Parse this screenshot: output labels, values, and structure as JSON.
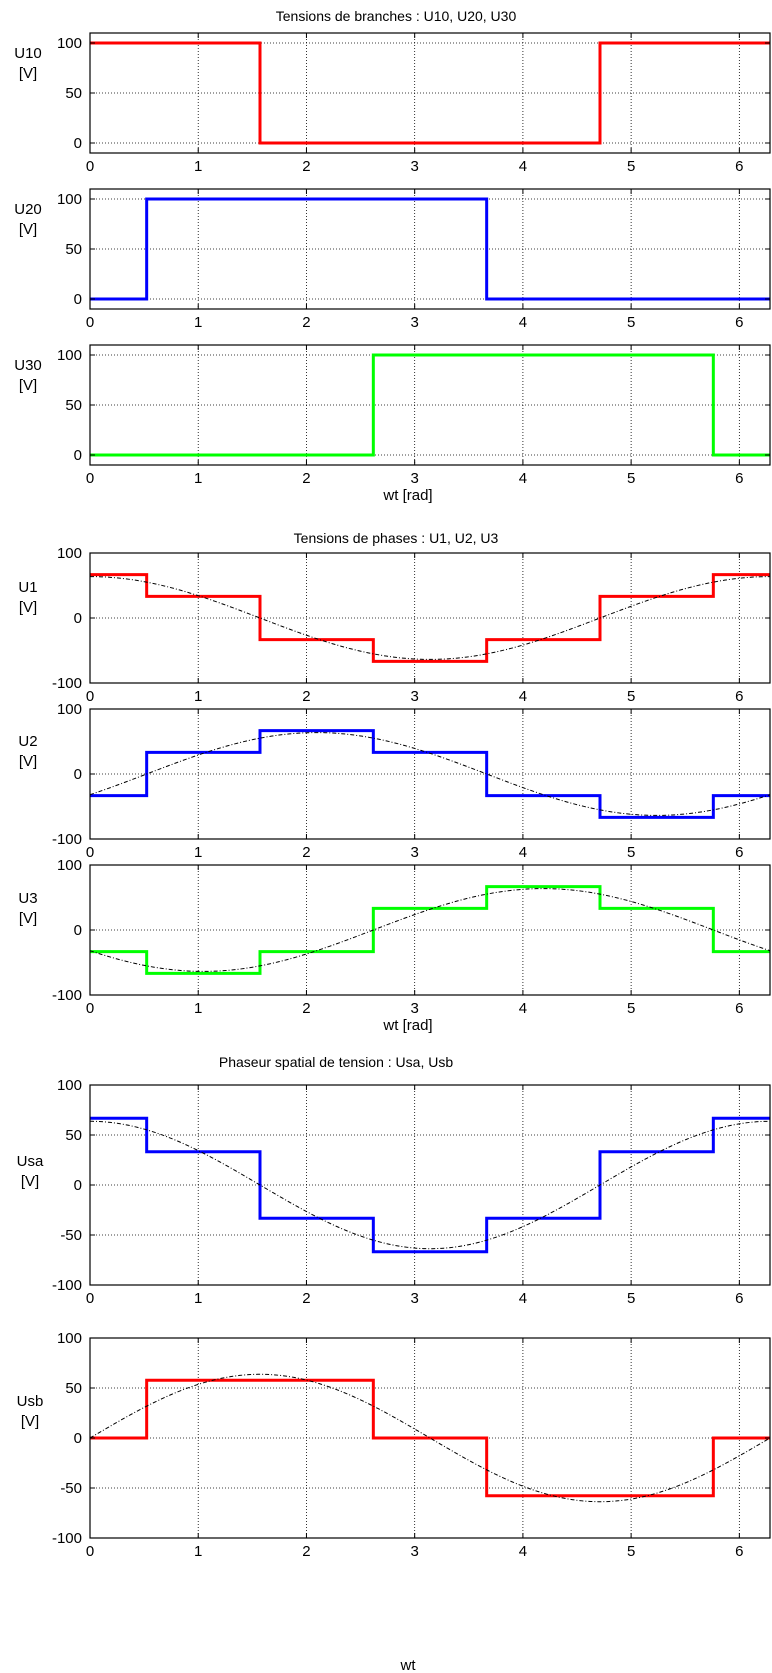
{
  "figures": [
    {
      "title": "Tensions de branches : U10, U20, U30",
      "xlabel": "wt [rad]",
      "panels": [
        {
          "id": "U10",
          "ylabel": [
            "U10",
            "[V]"
          ],
          "color": "#ff0000",
          "yticks": [
            "0",
            "50",
            "100"
          ]
        },
        {
          "id": "U20",
          "ylabel": [
            "U20",
            "[V]"
          ],
          "color": "#0000ff",
          "yticks": [
            "0",
            "50",
            "100"
          ]
        },
        {
          "id": "U30",
          "ylabel": [
            "U30",
            "[V]"
          ],
          "color": "#00ff00",
          "yticks": [
            "0",
            "50",
            "100"
          ]
        }
      ]
    },
    {
      "title": "Tensions de phases : U1, U2, U3",
      "xlabel": "wt [rad]",
      "panels": [
        {
          "id": "U1",
          "ylabel": [
            "U1",
            "[V]"
          ],
          "color": "#ff0000",
          "yticks": [
            "-100",
            "0",
            "100"
          ]
        },
        {
          "id": "U2",
          "ylabel": [
            "U2",
            "[V]"
          ],
          "color": "#0000ff",
          "yticks": [
            "-100",
            "0",
            "100"
          ]
        },
        {
          "id": "U3",
          "ylabel": [
            "U3",
            "[V]"
          ],
          "color": "#00ff00",
          "yticks": [
            "-100",
            "0",
            "100"
          ]
        }
      ]
    },
    {
      "title": "Phaseur spatial de tension : Usa, Usb",
      "xlabel": "",
      "panels": [
        {
          "id": "Usa",
          "ylabel": [
            "Usa",
            "[V]"
          ],
          "color": "#0000ff",
          "yticks": [
            "-100",
            "-50",
            "0",
            "50",
            "100"
          ]
        }
      ]
    },
    {
      "title": "",
      "xlabel": "wt",
      "panels": [
        {
          "id": "Usb",
          "ylabel": [
            "Usb",
            "[V]"
          ],
          "color": "#ff0000",
          "yticks": [
            "-100",
            "-50",
            "0",
            "50",
            "100"
          ]
        }
      ]
    }
  ],
  "chart_data": [
    {
      "id": "U10",
      "type": "line",
      "xlim": [
        0,
        6.2832
      ],
      "ylim": [
        -10,
        110
      ],
      "xticks": [
        0,
        1,
        2,
        3,
        4,
        5,
        6
      ],
      "yticks": [
        0,
        50,
        100
      ],
      "grid": true,
      "series": [
        {
          "x": [
            0,
            1.5708,
            1.5708,
            4.7124,
            4.7124,
            6.2832
          ],
          "y": [
            100,
            100,
            0,
            0,
            100,
            100
          ]
        }
      ]
    },
    {
      "id": "U20",
      "type": "line",
      "xlim": [
        0,
        6.2832
      ],
      "ylim": [
        -10,
        110
      ],
      "xticks": [
        0,
        1,
        2,
        3,
        4,
        5,
        6
      ],
      "yticks": [
        0,
        50,
        100
      ],
      "grid": true,
      "series": [
        {
          "x": [
            0,
            0.5236,
            0.5236,
            3.6652,
            3.6652,
            6.2832
          ],
          "y": [
            0,
            0,
            100,
            100,
            0,
            0
          ]
        }
      ]
    },
    {
      "id": "U30",
      "type": "line",
      "xlim": [
        0,
        6.2832
      ],
      "ylim": [
        -10,
        110
      ],
      "xticks": [
        0,
        1,
        2,
        3,
        4,
        5,
        6
      ],
      "yticks": [
        0,
        50,
        100
      ],
      "grid": true,
      "series": [
        {
          "x": [
            0,
            2.618,
            2.618,
            5.7596,
            5.7596,
            6.2832
          ],
          "y": [
            0,
            0,
            100,
            100,
            0,
            0
          ]
        }
      ]
    },
    {
      "id": "U1",
      "type": "line",
      "xlim": [
        0,
        6.2832
      ],
      "ylim": [
        -100,
        100
      ],
      "xticks": [
        0,
        1,
        2,
        3,
        4,
        5,
        6
      ],
      "yticks": [
        -100,
        0,
        100
      ],
      "grid": true,
      "series": [
        {
          "x": [
            0,
            0.5236,
            0.5236,
            1.5708,
            1.5708,
            2.618,
            2.618,
            3.6652,
            3.6652,
            4.7124,
            4.7124,
            5.7596,
            5.7596,
            6.2832
          ],
          "y": [
            66.7,
            66.7,
            33.3,
            33.3,
            -33.3,
            -33.3,
            -66.7,
            -66.7,
            -33.3,
            -33.3,
            33.3,
            33.3,
            66.7,
            66.7
          ]
        },
        {
          "style": "dashdot",
          "function": "sine",
          "amplitude": 63.7,
          "phase": 1.5708
        }
      ]
    },
    {
      "id": "U2",
      "type": "line",
      "xlim": [
        0,
        6.2832
      ],
      "ylim": [
        -100,
        100
      ],
      "xticks": [
        0,
        1,
        2,
        3,
        4,
        5,
        6
      ],
      "yticks": [
        -100,
        0,
        100
      ],
      "grid": true,
      "series": [
        {
          "x": [
            0,
            0.5236,
            0.5236,
            1.5708,
            1.5708,
            2.618,
            2.618,
            3.6652,
            3.6652,
            4.7124,
            4.7124,
            5.7596,
            5.7596,
            6.2832
          ],
          "y": [
            -33.3,
            -33.3,
            33.3,
            33.3,
            66.7,
            66.7,
            33.3,
            33.3,
            -33.3,
            -33.3,
            -66.7,
            -66.7,
            -33.3,
            -33.3
          ]
        },
        {
          "style": "dashdot",
          "function": "sine",
          "amplitude": 63.7,
          "phase": -0.5236
        }
      ]
    },
    {
      "id": "U3",
      "type": "line",
      "xlim": [
        0,
        6.2832
      ],
      "ylim": [
        -100,
        100
      ],
      "xticks": [
        0,
        1,
        2,
        3,
        4,
        5,
        6
      ],
      "yticks": [
        -100,
        0,
        100
      ],
      "grid": true,
      "series": [
        {
          "x": [
            0,
            0.5236,
            0.5236,
            1.5708,
            1.5708,
            2.618,
            2.618,
            3.6652,
            3.6652,
            4.7124,
            4.7124,
            5.7596,
            5.7596,
            6.2832
          ],
          "y": [
            -33.3,
            -33.3,
            -66.7,
            -66.7,
            -33.3,
            -33.3,
            33.3,
            33.3,
            66.7,
            66.7,
            33.3,
            33.3,
            -33.3,
            -33.3
          ]
        },
        {
          "style": "dashdot",
          "function": "sine",
          "amplitude": 63.7,
          "phase": -2.618
        }
      ]
    },
    {
      "id": "Usa",
      "type": "line",
      "xlim": [
        0,
        6.2832
      ],
      "ylim": [
        -100,
        100
      ],
      "xticks": [
        0,
        1,
        2,
        3,
        4,
        5,
        6
      ],
      "yticks": [
        -100,
        -50,
        0,
        50,
        100
      ],
      "grid": true,
      "series": [
        {
          "x": [
            0,
            0.5236,
            0.5236,
            1.5708,
            1.5708,
            2.618,
            2.618,
            3.6652,
            3.6652,
            4.7124,
            4.7124,
            5.7596,
            5.7596,
            6.2832
          ],
          "y": [
            66.7,
            66.7,
            33.3,
            33.3,
            -33.3,
            -33.3,
            -66.7,
            -66.7,
            -33.3,
            -33.3,
            33.3,
            33.3,
            66.7,
            66.7
          ]
        },
        {
          "style": "dashdot",
          "function": "sine",
          "amplitude": 63.7,
          "phase": 1.5708
        }
      ]
    },
    {
      "id": "Usb",
      "type": "line",
      "xlim": [
        0,
        6.2832
      ],
      "ylim": [
        -100,
        100
      ],
      "xticks": [
        0,
        1,
        2,
        3,
        4,
        5,
        6
      ],
      "yticks": [
        -100,
        -50,
        0,
        50,
        100
      ],
      "grid": true,
      "series": [
        {
          "x": [
            0,
            0.5236,
            0.5236,
            2.618,
            2.618,
            3.6652,
            3.6652,
            5.7596,
            5.7596,
            6.2832
          ],
          "y": [
            0,
            0,
            57.7,
            57.7,
            0,
            0,
            -57.7,
            -57.7,
            0,
            0
          ]
        },
        {
          "style": "dashdot",
          "function": "sine",
          "amplitude": 63.7,
          "phase": 0
        }
      ]
    }
  ]
}
